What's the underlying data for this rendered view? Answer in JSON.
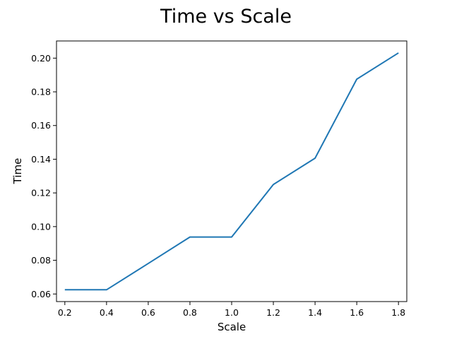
{
  "chart_data": {
    "type": "line",
    "title": "Time vs Scale",
    "xlabel": "Scale",
    "ylabel": "Time",
    "xlim": [
      0.16,
      1.84
    ],
    "ylim": [
      0.0555,
      0.2102
    ],
    "grid": false,
    "x_ticks": [
      0.2,
      0.4,
      0.6,
      0.8,
      1.0,
      1.2,
      1.4,
      1.6,
      1.8
    ],
    "x_tick_labels": [
      "0.2",
      "0.4",
      "0.6",
      "0.8",
      "1.0",
      "1.2",
      "1.4",
      "1.6",
      "1.8"
    ],
    "y_ticks": [
      0.06,
      0.08,
      0.1,
      0.12,
      0.14,
      0.16,
      0.18,
      0.2
    ],
    "y_tick_labels": [
      "0.06",
      "0.08",
      "0.10",
      "0.12",
      "0.14",
      "0.16",
      "0.18",
      "0.20"
    ],
    "series": [
      {
        "color": "#1f77b4",
        "x": [
          0.2,
          0.4,
          0.6,
          0.8,
          1.0,
          1.2,
          1.4,
          1.6,
          1.8
        ],
        "y": [
          0.0625,
          0.0625,
          0.0781,
          0.0938,
          0.0938,
          0.125,
          0.1406,
          0.1875,
          0.2031
        ]
      }
    ]
  }
}
